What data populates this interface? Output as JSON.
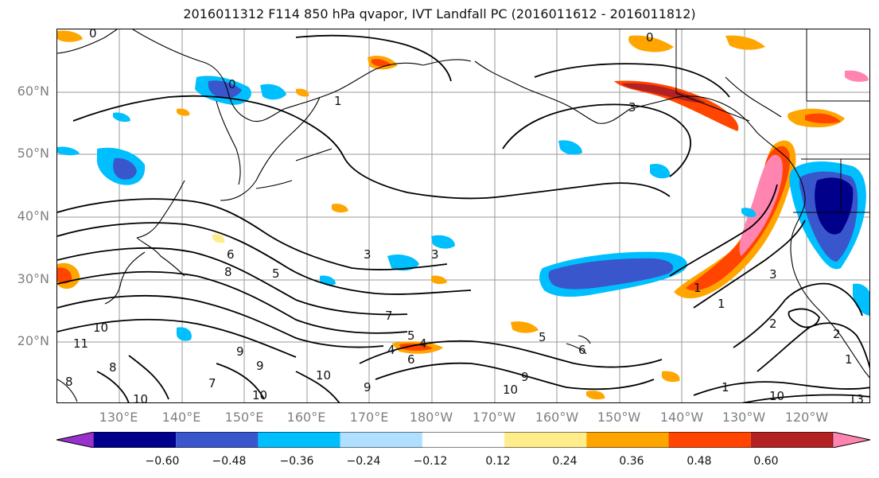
{
  "title": "2016011312 F114 850 hPa qvapor, IVT Landfall PC (2016011612 - 2016011812)",
  "lat_labels": [
    "60°N",
    "50°N",
    "40°N",
    "30°N",
    "20°N"
  ],
  "lon_labels": [
    "130°E",
    "140°E",
    "150°E",
    "160°E",
    "170°E",
    "180°W",
    "170°W",
    "160°W",
    "150°W",
    "140°W",
    "130°W",
    "120°W"
  ],
  "colorbar": {
    "colors": [
      "#9932CC",
      "#00008B",
      "#3A56CC",
      "#00BFFF",
      "#B0E0FF",
      "#FFFFFF",
      "#FFEC8B",
      "#FFA500",
      "#FF4500",
      "#B22222",
      "#FF85B0"
    ],
    "tick_labels": [
      "−0.60",
      "−0.48",
      "−0.36",
      "−0.24",
      "−0.12",
      "0.12",
      "0.24",
      "0.36",
      "0.48",
      "0.60"
    ]
  },
  "contour_labels": [
    "0",
    "0",
    "0",
    "1",
    "3",
    "6",
    "8",
    "5",
    "3",
    "3",
    "7",
    "5",
    "4",
    "4",
    "6",
    "9",
    "9",
    "8",
    "7",
    "9",
    "10",
    "10",
    "10",
    "11",
    "10",
    "8",
    "9",
    "10",
    "5",
    "6",
    "2",
    "2",
    "1",
    "1",
    "1",
    "3",
    "1",
    "10",
    "13"
  ]
}
